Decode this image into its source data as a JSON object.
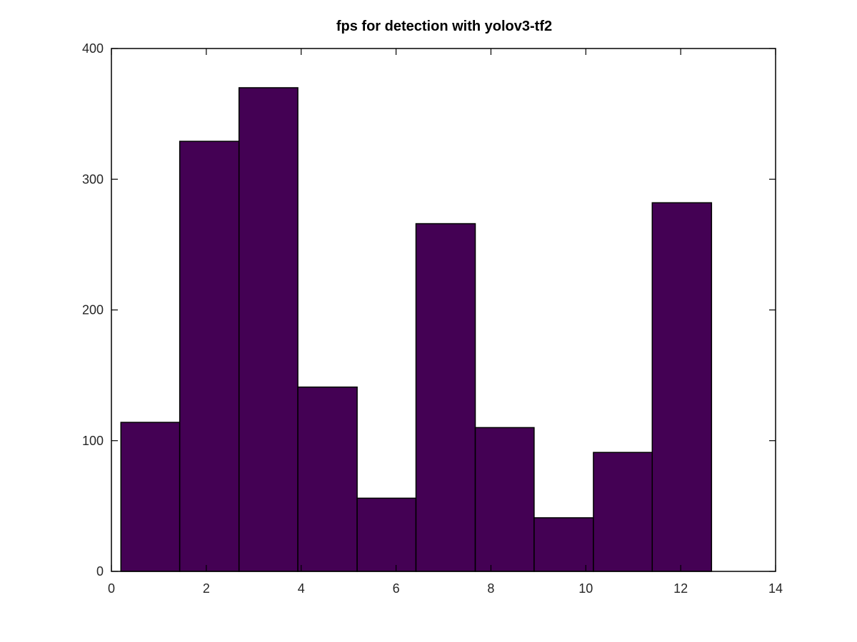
{
  "chart_data": {
    "type": "bar",
    "title": "fps for detection with yolov3-tf2",
    "xlabel": "",
    "ylabel": "",
    "bins": [
      {
        "x0": 0.2,
        "x1": 1.44,
        "value": 114
      },
      {
        "x0": 1.44,
        "x1": 2.69,
        "value": 329
      },
      {
        "x0": 2.69,
        "x1": 3.93,
        "value": 370
      },
      {
        "x0": 3.93,
        "x1": 5.18,
        "value": 141
      },
      {
        "x0": 5.18,
        "x1": 6.42,
        "value": 56
      },
      {
        "x0": 6.42,
        "x1": 7.67,
        "value": 266
      },
      {
        "x0": 7.67,
        "x1": 8.91,
        "value": 110
      },
      {
        "x0": 8.91,
        "x1": 10.16,
        "value": 41
      },
      {
        "x0": 10.16,
        "x1": 11.4,
        "value": 91
      },
      {
        "x0": 11.4,
        "x1": 12.65,
        "value": 282
      }
    ],
    "xlim": [
      0,
      14
    ],
    "ylim": [
      0,
      400
    ],
    "xticks": [
      0,
      2,
      4,
      6,
      8,
      10,
      12,
      14
    ],
    "yticks": [
      0,
      100,
      200,
      300,
      400
    ],
    "grid": false,
    "legend": "none",
    "bar_color": "#440154",
    "edge_color": "#000000"
  }
}
